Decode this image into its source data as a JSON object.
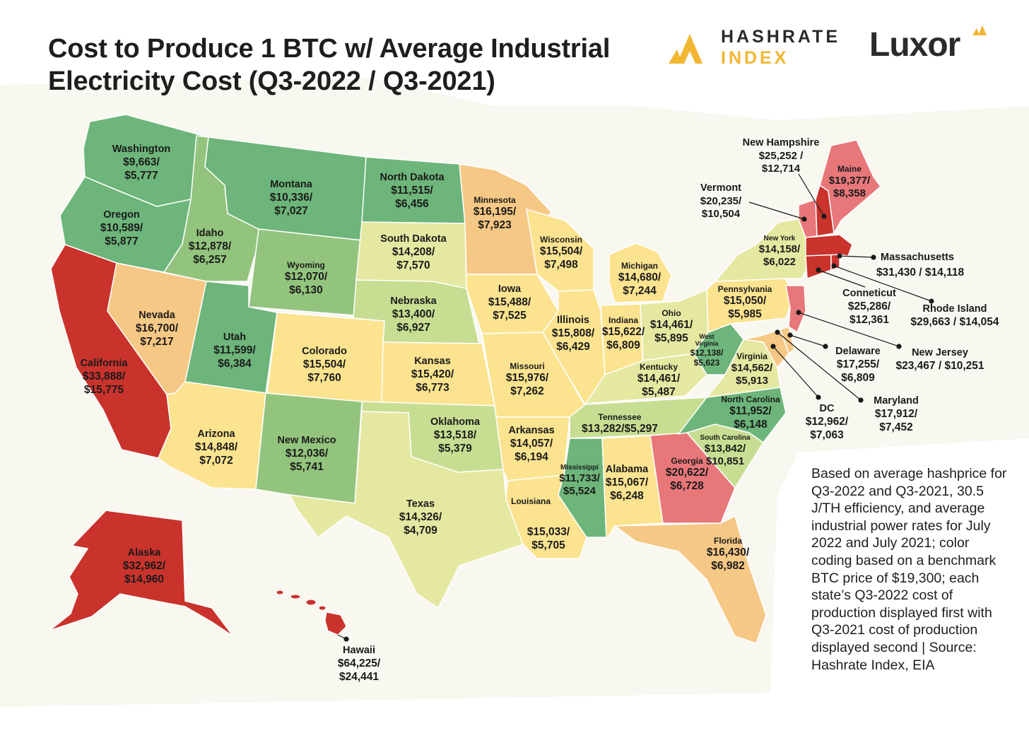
{
  "title": {
    "line1": "Cost to Produce 1 BTC w/ Average Industrial",
    "line2": "Electricity Cost (Q3-2022 / Q3-2021)"
  },
  "logos": {
    "hashrate_line1": "HASHRATE",
    "hashrate_line2": "INDEX",
    "luxor": "Luxor"
  },
  "colors": {
    "dark_green": "#6db57a",
    "green": "#93c47d",
    "light_green": "#c7de92",
    "yellow_green": "#e5e8a0",
    "yellow": "#fbe38f",
    "orange": "#f6c885",
    "pink": "#e8777a",
    "red": "#c9332c",
    "background_land": "#f4f2e6",
    "brand_gold": "#f2b632"
  },
  "states": {
    "washington": {
      "name": "Washington",
      "value": "$9,663/ $5,777"
    },
    "oregon": {
      "name": "Oregon",
      "value": "$10,589/ $5,877"
    },
    "california": {
      "name": "California",
      "value": "$33,888/ $15,775"
    },
    "nevada": {
      "name": "Nevada",
      "value": "$16,700/ $7,217"
    },
    "idaho": {
      "name": "Idaho",
      "value": "$12,878/ $6,257"
    },
    "montana": {
      "name": "Montana",
      "value": "$10,336/ $7,027"
    },
    "wyoming": {
      "name": "Wyoming",
      "value": "$12,070/ $6,130"
    },
    "utah": {
      "name": "Utah",
      "value": "$11,599/ $6,384"
    },
    "colorado": {
      "name": "Colorado",
      "value": "$15,504/ $7,760"
    },
    "arizona": {
      "name": "Arizona",
      "value": "$14,848/ $7,072"
    },
    "new_mexico": {
      "name": "New Mexico",
      "value": "$12,036/ $5,741"
    },
    "north_dakota": {
      "name": "North Dakota",
      "value": "$11,515/ $6,456"
    },
    "south_dakota": {
      "name": "South Dakota",
      "value": "$14,208/ $7,570"
    },
    "nebraska": {
      "name": "Nebraska",
      "value": "$13,400/ $6,927"
    },
    "kansas": {
      "name": "Kansas",
      "value": "$15,420/ $6,773"
    },
    "oklahoma": {
      "name": "Oklahoma",
      "value": "$13,518/ $5,379"
    },
    "texas": {
      "name": "Texas",
      "value": "$14,326/ $4,709"
    },
    "minnesota": {
      "name": "Minnesota",
      "value": "$16,195/ $7,923"
    },
    "iowa": {
      "name": "Iowa",
      "value": "$15,488/ $7,525"
    },
    "missouri": {
      "name": "Missouri",
      "value": "$15,976/ $7,262"
    },
    "arkansas": {
      "name": "Arkansas",
      "value": "$14,057/ $6,194"
    },
    "louisiana": {
      "name": "Louisiana",
      "value": "$15,033/ $5,705"
    },
    "wisconsin": {
      "name": "Wisconsin",
      "value": "$15,504/ $7,498"
    },
    "illinois": {
      "name": "Illinois",
      "value": "$15,808/ $6,429"
    },
    "michigan": {
      "name": "Michigan",
      "value": "$14,680/ $7,244"
    },
    "indiana": {
      "name": "Indiana",
      "value": "$15,622/ $6,809"
    },
    "ohio": {
      "name": "Ohio",
      "value": "$14,461/ $5,895"
    },
    "kentucky": {
      "name": "Kentucky",
      "value": "$14,461/ $5,487"
    },
    "tennessee": {
      "name": "Tennessee",
      "value": "$13,282/$5,297"
    },
    "mississippi": {
      "name": "Mississippi",
      "value": "$11,733/ $5,524"
    },
    "alabama": {
      "name": "Alabama",
      "value": "$15,067/ $6,248"
    },
    "georgia": {
      "name": "Georgia",
      "value": "$20,622/ $6,728"
    },
    "florida": {
      "name": "Florida",
      "value": "$16,430/ $6,982"
    },
    "south_carolina": {
      "name": "South Carolina",
      "value": "$13,842/ $10,851"
    },
    "north_carolina": {
      "name": "North Carolina",
      "value": "$11,952/ $6,148"
    },
    "virginia": {
      "name": "Virginia",
      "value": "$14,562/ $5,913"
    },
    "west_virginia": {
      "name": "West Virginia",
      "value": "$12,138/ $5,623"
    },
    "pennsylvania": {
      "name": "Pennsylvania",
      "value": "$15,050/ $5,985"
    },
    "new_york": {
      "name": "New York",
      "value": "$14,158/ $6,022"
    },
    "vermont": {
      "name": "Vermont",
      "value": "$20,235/ $10,504"
    },
    "new_hampshire": {
      "name": "New Hampshire",
      "value": "$25,252 / $12,714"
    },
    "maine": {
      "name": "Maine",
      "value": "$19,377/ $8,358"
    },
    "massachusetts": {
      "name": "Massachusetts",
      "value": "$31,430 / $14,118"
    },
    "rhode_island": {
      "name": "Rhode Island",
      "value": "$29,663 / $14,054"
    },
    "connecticut": {
      "name": "Conneticut",
      "value": "$25,286/ $12,361"
    },
    "new_jersey": {
      "name": "New Jersey",
      "value": "$23,467 / $10,251"
    },
    "delaware": {
      "name": "Delaware",
      "value": "$17,255/ $6,809"
    },
    "maryland": {
      "name": "Maryland",
      "value": "$17,912/ $7,452"
    },
    "dc": {
      "name": "DC",
      "value": "$12,962/ $7,063"
    },
    "alaska": {
      "name": "Alaska",
      "value": "$32,962/ $14,960"
    },
    "hawaii": {
      "name": "Hawaii",
      "value": "$64,225/ $24,441"
    }
  },
  "note": "Based on average hashprice for Q3-2022 and Q3-2021, 30.5 J/TH efficiency, and average industrial power rates for July 2022 and July 2021; color coding based on a benchmark BTC price of $19,300; each state’s Q3-2022 cost of production displayed first with Q3-2021 cost of production displayed second | Source: Hashrate Index, EIA"
}
